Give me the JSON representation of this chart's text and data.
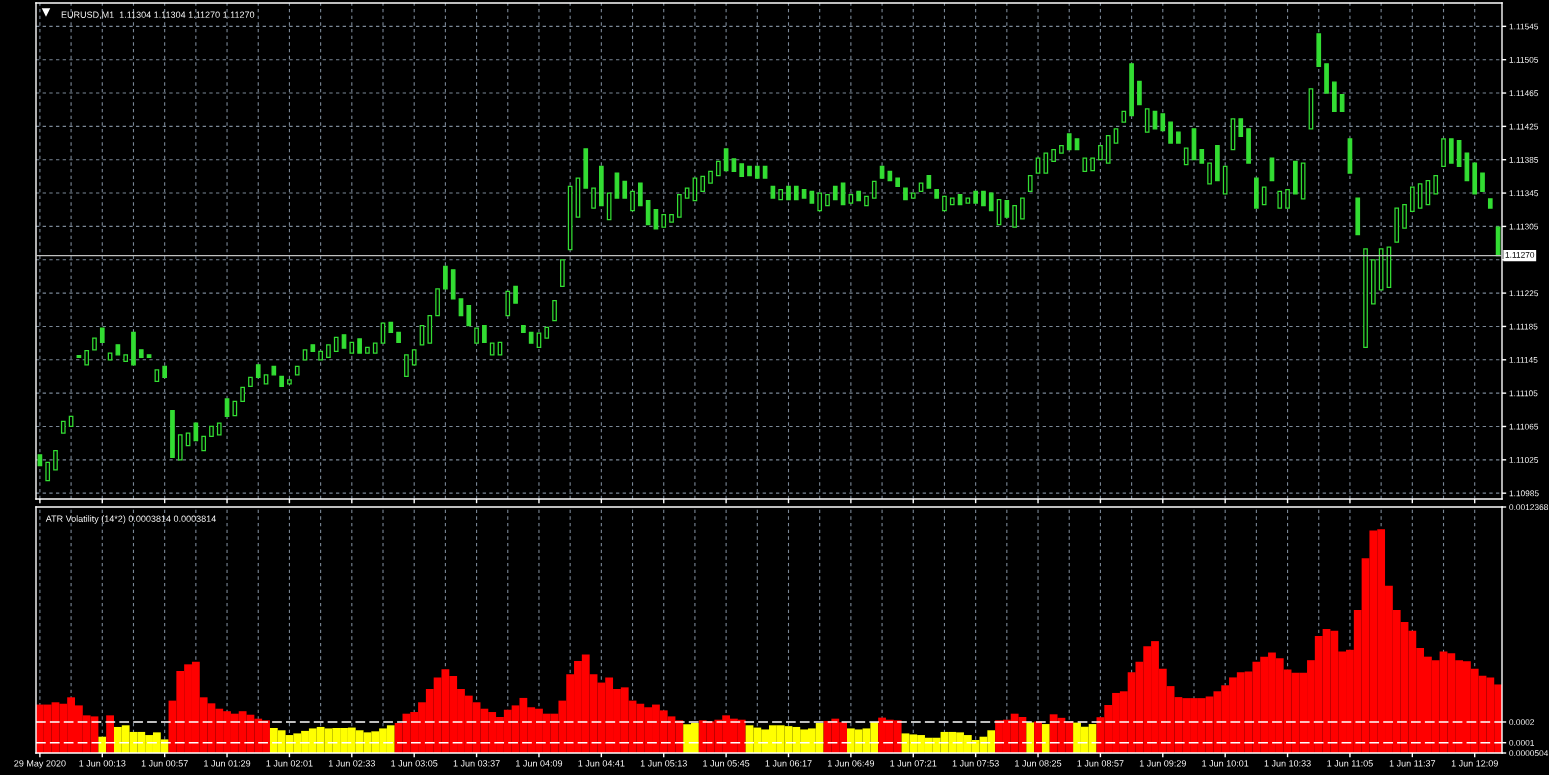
{
  "chart_data": [
    {
      "type": "candlestick",
      "title": "EURUSD,M1  1.11304 1.11304 1.11270 1.11270",
      "color": "#33dd33",
      "categories": [
        null,
        null,
        null,
        null,
        null,
        null,
        null,
        null,
        null,
        null,
        null,
        null,
        null,
        null,
        null,
        null,
        null,
        null,
        null,
        null,
        null,
        null,
        null,
        null,
        null,
        null,
        null,
        null,
        null,
        null,
        null,
        null,
        null,
        null,
        null,
        null,
        null,
        null,
        null,
        null,
        null,
        null,
        null,
        null,
        null,
        null,
        null,
        null,
        null,
        null,
        null,
        null,
        null,
        null,
        null,
        null,
        null,
        null,
        null,
        null,
        null,
        null,
        null,
        null,
        null,
        null,
        null,
        null,
        null,
        null,
        null,
        null,
        null,
        null,
        null,
        null,
        null,
        null,
        null,
        null,
        null,
        null,
        null,
        null,
        null,
        null,
        null,
        null,
        null,
        null,
        null,
        null,
        null,
        null,
        null,
        null,
        null,
        null,
        null,
        null,
        null,
        null,
        null,
        null,
        null,
        null,
        null,
        null,
        null,
        null,
        null,
        null,
        null,
        null,
        null,
        null,
        null,
        null,
        null,
        null,
        null,
        null,
        null,
        null,
        null,
        null,
        null,
        null,
        null,
        null,
        null,
        null,
        null,
        null,
        null,
        null,
        null,
        null,
        null,
        null,
        null,
        null,
        null,
        null,
        null,
        null,
        null,
        null,
        null,
        null,
        null,
        null,
        null,
        null,
        null,
        null,
        null,
        null,
        null,
        null,
        null,
        null,
        null,
        null,
        null,
        null,
        null,
        null,
        null,
        null,
        null,
        null,
        null,
        null,
        null,
        null,
        null,
        null,
        null,
        null,
        null,
        null,
        null,
        null,
        null,
        null,
        null,
        null
      ],
      "ohlc": [
        [
          1.11031,
          1.11031,
          1.11018,
          1.11018
        ],
        [
          1.11,
          1.11022,
          1.11,
          1.11022
        ],
        [
          1.11013,
          1.11036,
          1.11013,
          1.11036
        ],
        [
          1.11057,
          1.11071,
          1.11057,
          1.11071
        ],
        [
          1.11065,
          1.11077,
          1.11065,
          1.11077
        ],
        [
          1.1115,
          1.1115,
          1.11148,
          1.11148
        ],
        [
          1.11139,
          1.11156,
          1.11139,
          1.11156
        ],
        [
          1.11157,
          1.11171,
          1.11157,
          1.11171
        ],
        [
          1.11183,
          1.11183,
          1.11166,
          1.11166
        ],
        [
          1.11145,
          1.11153,
          1.11145,
          1.11153
        ],
        [
          1.11163,
          1.11163,
          1.11151,
          1.11151
        ],
        [
          1.11143,
          1.11151,
          1.11143,
          1.11151
        ],
        [
          1.11178,
          1.11178,
          1.11139,
          1.11139
        ],
        [
          1.11157,
          1.11157,
          1.11148,
          1.11148
        ],
        [
          1.11151,
          1.11151,
          1.11148,
          1.11148
        ],
        [
          1.11119,
          1.11133,
          1.11119,
          1.11133
        ],
        [
          1.11137,
          1.11137,
          1.11124,
          1.11124
        ],
        [
          1.11084,
          1.11084,
          1.11028,
          1.11028
        ],
        [
          1.11025,
          1.11055,
          1.11025,
          1.11055
        ],
        [
          1.11042,
          1.11057,
          1.11042,
          1.11057
        ],
        [
          1.11069,
          1.11069,
          1.11048,
          1.11048
        ],
        [
          1.11036,
          1.11053,
          1.11036,
          1.11053
        ],
        [
          1.11053,
          1.11065,
          1.11053,
          1.11065
        ],
        [
          1.11055,
          1.11069,
          1.11055,
          1.11069
        ],
        [
          1.11098,
          1.11098,
          1.11077,
          1.11077
        ],
        [
          1.11078,
          1.11095,
          1.11078,
          1.11095
        ],
        [
          1.11095,
          1.11112,
          1.11095,
          1.11112
        ],
        [
          1.11113,
          1.11124,
          1.11113,
          1.11124
        ],
        [
          1.11139,
          1.11139,
          1.11124,
          1.11124
        ],
        [
          1.11116,
          1.11127,
          1.11116,
          1.11127
        ],
        [
          1.11137,
          1.11137,
          1.11127,
          1.11127
        ],
        [
          1.11125,
          1.11125,
          1.11113,
          1.11113
        ],
        [
          1.11116,
          1.11121,
          1.11116,
          1.11121
        ],
        [
          1.11127,
          1.11137,
          1.11127,
          1.11137
        ],
        [
          1.11145,
          1.11157,
          1.11145,
          1.11157
        ],
        [
          1.11163,
          1.11163,
          1.11155,
          1.11155
        ],
        [
          1.11145,
          1.11155,
          1.11145,
          1.11155
        ],
        [
          1.11148,
          1.11163,
          1.11148,
          1.11163
        ],
        [
          1.11155,
          1.11172,
          1.11155,
          1.11172
        ],
        [
          1.11175,
          1.11175,
          1.11159,
          1.11159
        ],
        [
          1.11153,
          1.11166,
          1.11153,
          1.11166
        ],
        [
          1.1117,
          1.1117,
          1.11153,
          1.11153
        ],
        [
          1.11153,
          1.1116,
          1.11153,
          1.1116
        ],
        [
          1.11153,
          1.11165,
          1.11153,
          1.11165
        ],
        [
          1.11165,
          1.11189,
          1.11165,
          1.11189
        ],
        [
          1.1119,
          1.1119,
          1.11178,
          1.11178
        ],
        [
          1.11178,
          1.11178,
          1.11166,
          1.11166
        ],
        [
          1.11125,
          1.11151,
          1.11125,
          1.11151
        ],
        [
          1.11139,
          1.11157,
          1.11139,
          1.11157
        ],
        [
          1.11163,
          1.11186,
          1.11163,
          1.11186
        ],
        [
          1.11165,
          1.11198,
          1.11165,
          1.11198
        ],
        [
          1.11198,
          1.1123,
          1.11198,
          1.1123
        ],
        [
          1.11257,
          1.11257,
          1.1123,
          1.1123
        ],
        [
          1.11253,
          1.11253,
          1.11218,
          1.11218
        ],
        [
          1.11218,
          1.11218,
          1.11198,
          1.11198
        ],
        [
          1.1121,
          1.1121,
          1.11186,
          1.11186
        ],
        [
          1.11165,
          1.11183,
          1.11165,
          1.11183
        ],
        [
          1.11186,
          1.11186,
          1.11166,
          1.11166
        ],
        [
          1.11151,
          1.11165,
          1.11151,
          1.11165
        ],
        [
          1.11151,
          1.11166,
          1.11151,
          1.11166
        ],
        [
          1.11198,
          1.11227,
          1.11198,
          1.11227
        ],
        [
          1.11233,
          1.11233,
          1.11213,
          1.11213
        ],
        [
          1.11186,
          1.11186,
          1.11178,
          1.11178
        ],
        [
          1.11178,
          1.11178,
          1.11165,
          1.11165
        ],
        [
          1.1116,
          1.11177,
          1.1116,
          1.11177
        ],
        [
          1.11171,
          1.11184,
          1.11171,
          1.11184
        ],
        [
          1.11192,
          1.11216,
          1.11192,
          1.11216
        ],
        [
          1.11233,
          1.11265,
          1.11233,
          1.11265
        ],
        [
          1.11277,
          1.11353,
          1.11277,
          1.11353
        ],
        [
          1.11316,
          1.11363,
          1.11316,
          1.11363
        ],
        [
          1.11398,
          1.11398,
          1.11351,
          1.11351
        ],
        [
          1.11327,
          1.11351,
          1.11327,
          1.11351
        ],
        [
          1.11377,
          1.11377,
          1.1133,
          1.1133
        ],
        [
          1.11313,
          1.11345,
          1.11313,
          1.11345
        ],
        [
          1.11369,
          1.11369,
          1.11339,
          1.11339
        ],
        [
          1.11359,
          1.11359,
          1.11339,
          1.11339
        ],
        [
          1.11324,
          1.11347,
          1.11324,
          1.11347
        ],
        [
          1.11357,
          1.11357,
          1.1133,
          1.1133
        ],
        [
          1.11336,
          1.11336,
          1.11307,
          1.11307
        ],
        [
          1.11325,
          1.11325,
          1.11302,
          1.11302
        ],
        [
          1.11304,
          1.11319,
          1.11304,
          1.11319
        ],
        [
          1.1131,
          1.11319,
          1.1131,
          1.11319
        ],
        [
          1.11316,
          1.11343,
          1.11316,
          1.11343
        ],
        [
          1.11339,
          1.11351,
          1.11339,
          1.11351
        ],
        [
          1.11336,
          1.11363,
          1.11336,
          1.11363
        ],
        [
          1.11347,
          1.11365,
          1.11347,
          1.11365
        ],
        [
          1.11357,
          1.11371,
          1.11357,
          1.11371
        ],
        [
          1.11366,
          1.11383,
          1.11366,
          1.11383
        ],
        [
          1.11398,
          1.11398,
          1.11372,
          1.11372
        ],
        [
          1.11386,
          1.11386,
          1.11371,
          1.11371
        ],
        [
          1.1138,
          1.1138,
          1.11365,
          1.11365
        ],
        [
          1.11377,
          1.11377,
          1.11366,
          1.11366
        ],
        [
          1.11377,
          1.11377,
          1.11363,
          1.11363
        ],
        [
          1.11377,
          1.11377,
          1.11363,
          1.11363
        ],
        [
          1.11353,
          1.11353,
          1.11339,
          1.11339
        ],
        [
          1.11337,
          1.11349,
          1.11337,
          1.11349
        ],
        [
          1.11353,
          1.11353,
          1.11337,
          1.11337
        ],
        [
          1.11353,
          1.11353,
          1.11337,
          1.11337
        ],
        [
          1.11349,
          1.11349,
          1.11339,
          1.11339
        ],
        [
          1.11347,
          1.11347,
          1.11333,
          1.11333
        ],
        [
          1.11324,
          1.11345,
          1.11324,
          1.11345
        ],
        [
          1.1133,
          1.11343,
          1.1133,
          1.11343
        ],
        [
          1.11353,
          1.11353,
          1.11337,
          1.11337
        ],
        [
          1.11357,
          1.11357,
          1.11331,
          1.11331
        ],
        [
          1.11333,
          1.11343,
          1.11333,
          1.11343
        ],
        [
          1.11347,
          1.11347,
          1.11336,
          1.11336
        ],
        [
          1.1133,
          1.11341,
          1.1133,
          1.11341
        ],
        [
          1.11339,
          1.11359,
          1.11339,
          1.11359
        ],
        [
          1.11377,
          1.11377,
          1.11363,
          1.11363
        ],
        [
          1.11371,
          1.11371,
          1.1136,
          1.1136
        ],
        [
          1.11363,
          1.11363,
          1.11353,
          1.11353
        ],
        [
          1.11351,
          1.11351,
          1.11337,
          1.11337
        ],
        [
          1.11339,
          1.11345,
          1.11339,
          1.11345
        ],
        [
          1.11347,
          1.11357,
          1.11347,
          1.11357
        ],
        [
          1.11366,
          1.11366,
          1.11351,
          1.11351
        ],
        [
          1.11349,
          1.11349,
          1.11339,
          1.11339
        ],
        [
          1.11324,
          1.11341,
          1.11324,
          1.11341
        ],
        [
          1.11331,
          1.11339,
          1.11331,
          1.11339
        ],
        [
          1.11343,
          1.11343,
          1.11331,
          1.11331
        ],
        [
          1.11333,
          1.11339,
          1.11333,
          1.11339
        ],
        [
          1.11347,
          1.11347,
          1.11333,
          1.11333
        ],
        [
          1.11347,
          1.11347,
          1.1133,
          1.1133
        ],
        [
          1.11345,
          1.11345,
          1.11324,
          1.11324
        ],
        [
          1.11307,
          1.11337,
          1.11307,
          1.11337
        ],
        [
          1.11336,
          1.11336,
          1.11316,
          1.11316
        ],
        [
          1.11304,
          1.1133,
          1.11304,
          1.1133
        ],
        [
          1.11314,
          1.11339,
          1.11314,
          1.11339
        ],
        [
          1.11347,
          1.11366,
          1.11347,
          1.11366
        ],
        [
          1.11369,
          1.11387,
          1.11369,
          1.11387
        ],
        [
          1.11369,
          1.11393,
          1.11369,
          1.11393
        ],
        [
          1.11383,
          1.11397,
          1.11383,
          1.11397
        ],
        [
          1.11393,
          1.11402,
          1.11393,
          1.11402
        ],
        [
          1.11416,
          1.11416,
          1.11397,
          1.11397
        ],
        [
          1.1141,
          1.1141,
          1.11397,
          1.11397
        ],
        [
          1.11371,
          1.11387,
          1.11371,
          1.11387
        ],
        [
          1.11372,
          1.11387,
          1.11372,
          1.11387
        ],
        [
          1.11385,
          1.11402,
          1.11385,
          1.11402
        ],
        [
          1.11381,
          1.11414,
          1.11381,
          1.11414
        ],
        [
          1.11405,
          1.11422,
          1.11405,
          1.11422
        ],
        [
          1.1143,
          1.11443,
          1.1143,
          1.11443
        ],
        [
          1.115,
          1.115,
          1.11438,
          1.11438
        ],
        [
          1.11479,
          1.11479,
          1.11451,
          1.11451
        ],
        [
          1.11418,
          1.11446,
          1.11418,
          1.11446
        ],
        [
          1.11443,
          1.11443,
          1.11422,
          1.11422
        ],
        [
          1.1144,
          1.1144,
          1.1142,
          1.1142
        ],
        [
          1.1143,
          1.1143,
          1.11405,
          1.11405
        ],
        [
          1.11418,
          1.11418,
          1.11405,
          1.11405
        ],
        [
          1.11379,
          1.11399,
          1.11379,
          1.11399
        ],
        [
          1.11422,
          1.11422,
          1.11385,
          1.11385
        ],
        [
          1.11397,
          1.11397,
          1.11381,
          1.11381
        ],
        [
          1.11356,
          1.11381,
          1.11356,
          1.11381
        ],
        [
          1.11402,
          1.11402,
          1.1136,
          1.1136
        ],
        [
          1.11344,
          1.11377,
          1.11344,
          1.11377
        ],
        [
          1.11397,
          1.11434,
          1.11397,
          1.11434
        ],
        [
          1.11434,
          1.11434,
          1.11413,
          1.11413
        ],
        [
          1.11422,
          1.11422,
          1.11381,
          1.11381
        ],
        [
          1.11363,
          1.11363,
          1.11327,
          1.11327
        ],
        [
          1.11331,
          1.11352,
          1.11331,
          1.11352
        ],
        [
          1.11387,
          1.11387,
          1.1136,
          1.1136
        ],
        [
          1.11327,
          1.11347,
          1.11327,
          1.11347
        ],
        [
          1.11327,
          1.11349,
          1.11327,
          1.11349
        ],
        [
          1.11383,
          1.11383,
          1.11344,
          1.11344
        ],
        [
          1.11338,
          1.11381,
          1.11338,
          1.11381
        ],
        [
          1.11422,
          1.1147,
          1.11422,
          1.1147
        ],
        [
          1.11536,
          1.11536,
          1.11497,
          1.11497
        ],
        [
          1.115,
          1.115,
          1.11465,
          1.11465
        ],
        [
          1.11478,
          1.11478,
          1.11443,
          1.11443
        ],
        [
          1.11463,
          1.11463,
          1.11443,
          1.11443
        ],
        [
          1.1141,
          1.1141,
          1.11369,
          1.11369
        ],
        [
          1.11339,
          1.11339,
          1.11295,
          1.11295
        ],
        [
          1.1116,
          1.11278,
          1.1116,
          1.11278
        ],
        [
          1.11212,
          1.11265,
          1.11212,
          1.11265
        ],
        [
          1.11229,
          1.11278,
          1.11229,
          1.11278
        ],
        [
          1.11232,
          1.1128,
          1.11232,
          1.1128
        ],
        [
          1.11286,
          1.11327,
          1.11286,
          1.11327
        ],
        [
          1.11303,
          1.11331,
          1.11303,
          1.11331
        ],
        [
          1.11323,
          1.11352,
          1.11323,
          1.11352
        ],
        [
          1.11327,
          1.11356,
          1.11327,
          1.11356
        ],
        [
          1.11331,
          1.1136,
          1.11331,
          1.1136
        ],
        [
          1.11344,
          1.11366,
          1.11344,
          1.11366
        ],
        [
          1.11377,
          1.1141,
          1.11377,
          1.1141
        ],
        [
          1.1141,
          1.1141,
          1.11381,
          1.11381
        ],
        [
          1.11408,
          1.11408,
          1.11377,
          1.11377
        ],
        [
          1.11393,
          1.11393,
          1.1136,
          1.1136
        ],
        [
          1.11381,
          1.11381,
          1.11344,
          1.11344
        ],
        [
          1.11369,
          1.11369,
          1.11347,
          1.11347
        ],
        [
          1.11338,
          1.11338,
          1.11327,
          1.11327
        ],
        [
          1.11304,
          1.11304,
          1.1127,
          1.1127
        ]
      ],
      "ylim": [
        1.10978,
        1.11573
      ],
      "yticks": [
        1.10985,
        1.11025,
        1.11065,
        1.11105,
        1.11145,
        1.11185,
        1.11225,
        {
          "value": 1.11265,
          "label": null
        },
        1.11305,
        1.11345,
        1.11385,
        1.11425,
        1.11465,
        1.11505,
        1.11545
      ],
      "grid": true,
      "tick_labels": "y",
      "ref_lines": [
        {
          "axis": "y",
          "value": 1.1127,
          "label": "1.11270",
          "color": "#c0c0c0"
        }
      ]
    },
    {
      "type": "bar",
      "title": "ATR Volatility (14*2) 0.0003814 0.0003814",
      "categories": [
        "29 May 2020",
        null,
        null,
        null,
        null,
        null,
        null,
        null,
        "1 Jun 00:13",
        null,
        null,
        null,
        null,
        null,
        null,
        null,
        "1 Jun 00:57",
        null,
        null,
        null,
        null,
        null,
        null,
        null,
        "1 Jun 01:29",
        null,
        null,
        null,
        null,
        null,
        null,
        null,
        "1 Jun 02:01",
        null,
        null,
        null,
        null,
        null,
        null,
        null,
        "1 Jun 02:33",
        null,
        null,
        null,
        null,
        null,
        null,
        null,
        "1 Jun 03:05",
        null,
        null,
        null,
        null,
        null,
        null,
        null,
        "1 Jun 03:37",
        null,
        null,
        null,
        null,
        null,
        null,
        null,
        "1 Jun 04:09",
        null,
        null,
        null,
        null,
        null,
        null,
        null,
        "1 Jun 04:41",
        null,
        null,
        null,
        null,
        null,
        null,
        null,
        "1 Jun 05:13",
        null,
        null,
        null,
        null,
        null,
        null,
        null,
        "1 Jun 05:45",
        null,
        null,
        null,
        null,
        null,
        null,
        null,
        "1 Jun 06:17",
        null,
        null,
        null,
        null,
        null,
        null,
        null,
        "1 Jun 06:49",
        null,
        null,
        null,
        null,
        null,
        null,
        null,
        "1 Jun 07:21",
        null,
        null,
        null,
        null,
        null,
        null,
        null,
        "1 Jun 07:53",
        null,
        null,
        null,
        null,
        null,
        null,
        null,
        "1 Jun 08:25",
        null,
        null,
        null,
        null,
        null,
        null,
        null,
        "1 Jun 08:57",
        null,
        null,
        null,
        null,
        null,
        null,
        null,
        "1 Jun 09:29",
        null,
        null,
        null,
        null,
        null,
        null,
        null,
        "1 Jun 10:01",
        null,
        null,
        null,
        null,
        null,
        null,
        null,
        "1 Jun 10:33",
        null,
        null,
        null,
        null,
        null,
        null,
        null,
        "1 Jun 11:05",
        null,
        null,
        null,
        null,
        null,
        null,
        null,
        "1 Jun 11:37",
        null,
        null,
        null,
        null,
        null,
        null,
        null,
        "1 Jun 12:09",
        null,
        null,
        null
      ],
      "values": [
        0.000284,
        0.000284,
        0.000295,
        0.000288,
        0.000319,
        0.00028,
        0.000232,
        0.000227,
        0.000129,
        0.000232,
        0.000176,
        0.000184,
        0.000152,
        0.000152,
        0.000137,
        0.00015,
        0.000116,
        0.000303,
        0.000446,
        0.000478,
        0.00049,
        0.000319,
        0.00029,
        0.000264,
        0.000252,
        0.00024,
        0.000252,
        0.000235,
        0.000216,
        0.000208,
        0.000171,
        0.00016,
        0.000137,
        0.000145,
        0.000157,
        0.000169,
        0.000176,
        0.000169,
        0.000171,
        0.000171,
        0.000173,
        0.00016,
        0.00015,
        0.000155,
        0.000169,
        0.000184,
        0.000195,
        0.00024,
        0.000248,
        0.000295,
        0.000359,
        0.000414,
        0.000454,
        0.000422,
        0.000359,
        0.000327,
        0.000295,
        0.000264,
        0.000248,
        0.000224,
        0.000259,
        0.00028,
        0.000316,
        0.000271,
        0.000264,
        0.00024,
        0.00024,
        0.000303,
        0.00043,
        0.000494,
        0.000526,
        0.00043,
        0.00039,
        0.000414,
        0.000359,
        0.000367,
        0.000303,
        0.000288,
        0.000271,
        0.000284,
        0.000256,
        0.000227,
        0.000208,
        0.000189,
        0.000195,
        0.000208,
        0.000203,
        0.000211,
        0.000232,
        0.000216,
        0.000211,
        0.000184,
        0.000173,
        0.000164,
        0.000184,
        0.000184,
        0.00018,
        0.000176,
        0.000164,
        0.000169,
        0.000195,
        0.000205,
        0.000216,
        0.000199,
        0.000169,
        0.000164,
        0.000169,
        0.000199,
        0.000221,
        0.000211,
        0.000208,
        0.000145,
        0.00014,
        0.000137,
        0.000124,
        0.000124,
        0.000152,
        0.000152,
        0.00015,
        0.000137,
        0.000113,
        0.000129,
        0.00016,
        0.000208,
        0.000211,
        0.00024,
        0.000224,
        0.000198,
        0.000202,
        0.00019,
        0.000237,
        0.00022,
        0.000203,
        0.000197,
        0.000177,
        0.00019,
        0.000223,
        0.000282,
        0.00034,
        0.000348,
        0.00044,
        0.00049,
        0.000565,
        0.00059,
        0.000457,
        0.000373,
        0.00032,
        0.000315,
        0.000315,
        0.000315,
        0.000323,
        0.000348,
        0.000377,
        0.000415,
        0.00044,
        0.000443,
        0.00049,
        0.000515,
        0.000535,
        0.000507,
        0.000453,
        0.000437,
        0.000437,
        0.000498,
        0.000615,
        0.000648,
        0.00064,
        0.00054,
        0.000548,
        0.00074,
        0.00099,
        0.001123,
        0.00113,
        0.000857,
        0.00074,
        0.000682,
        0.00064,
        0.000557,
        0.000515,
        0.000498,
        0.00054,
        0.000532,
        0.000498,
        0.000493,
        0.000457,
        0.000423,
        0.000415,
        0.000381
      ],
      "colors": [
        "#ff0000",
        "#ff0000",
        "#ff0000",
        "#ff0000",
        "#ff0000",
        "#ff0000",
        "#ff0000",
        "#ff0000",
        "#ffff00",
        "#ff0000",
        "#ffff00",
        "#ffff00",
        "#ffff00",
        "#ffff00",
        "#ffff00",
        "#ffff00",
        "#ffff00",
        "#ff0000",
        "#ff0000",
        "#ff0000",
        "#ff0000",
        "#ff0000",
        "#ff0000",
        "#ff0000",
        "#ff0000",
        "#ff0000",
        "#ff0000",
        "#ff0000",
        "#ff0000",
        "#ff0000",
        "#ffff00",
        "#ffff00",
        "#ffff00",
        "#ffff00",
        "#ffff00",
        "#ffff00",
        "#ffff00",
        "#ffff00",
        "#ffff00",
        "#ffff00",
        "#ffff00",
        "#ffff00",
        "#ffff00",
        "#ffff00",
        "#ffff00",
        "#ffff00",
        "#ff0000",
        "#ff0000",
        "#ff0000",
        "#ff0000",
        "#ff0000",
        "#ff0000",
        "#ff0000",
        "#ff0000",
        "#ff0000",
        "#ff0000",
        "#ff0000",
        "#ff0000",
        "#ff0000",
        "#ff0000",
        "#ff0000",
        "#ff0000",
        "#ff0000",
        "#ff0000",
        "#ff0000",
        "#ff0000",
        "#ff0000",
        "#ff0000",
        "#ff0000",
        "#ff0000",
        "#ff0000",
        "#ff0000",
        "#ff0000",
        "#ff0000",
        "#ff0000",
        "#ff0000",
        "#ff0000",
        "#ff0000",
        "#ff0000",
        "#ff0000",
        "#ff0000",
        "#ff0000",
        "#ff0000",
        "#ffff00",
        "#ffff00",
        "#ff0000",
        "#ff0000",
        "#ff0000",
        "#ff0000",
        "#ff0000",
        "#ff0000",
        "#ffff00",
        "#ffff00",
        "#ffff00",
        "#ffff00",
        "#ffff00",
        "#ffff00",
        "#ffff00",
        "#ffff00",
        "#ffff00",
        "#ffff00",
        "#ff0000",
        "#ff0000",
        "#ff0000",
        "#ffff00",
        "#ffff00",
        "#ffff00",
        "#ffff00",
        "#ff0000",
        "#ff0000",
        "#ff0000",
        "#ffff00",
        "#ffff00",
        "#ffff00",
        "#ffff00",
        "#ffff00",
        "#ffff00",
        "#ffff00",
        "#ffff00",
        "#ffff00",
        "#ffff00",
        "#ffff00",
        "#ffff00",
        "#ff0000",
        "#ff0000",
        "#ff0000",
        "#ff0000",
        "#ffff00",
        "#ff0000",
        "#ffff00",
        "#ff0000",
        "#ff0000",
        "#ff0000",
        "#ffff00",
        "#ffff00",
        "#ffff00",
        "#ff0000",
        "#ff0000",
        "#ff0000",
        "#ff0000",
        "#ff0000",
        "#ff0000",
        "#ff0000",
        "#ff0000",
        "#ff0000",
        "#ff0000",
        "#ff0000",
        "#ff0000",
        "#ff0000",
        "#ff0000",
        "#ff0000",
        "#ff0000",
        "#ff0000",
        "#ff0000",
        "#ff0000",
        "#ff0000",
        "#ff0000",
        "#ff0000",
        "#ff0000",
        "#ff0000",
        "#ff0000",
        "#ff0000",
        "#ff0000",
        "#ff0000",
        "#ff0000",
        "#ff0000",
        "#ff0000",
        "#ff0000",
        "#ff0000",
        "#ff0000",
        "#ff0000",
        "#ff0000",
        "#ff0000",
        "#ff0000",
        "#ff0000",
        "#ff0000",
        "#ff0000",
        "#ff0000",
        "#ff0000",
        "#ff0000",
        "#ff0000",
        "#ff0000",
        "#ff0000",
        "#ff0000",
        "#ff0000",
        "#ff0000",
        "#ff0000",
        "#ff0000"
      ],
      "ylim": [
        5.04e-05,
        0.0012368
      ],
      "yticks": [
        {
          "value": 5.04e-05,
          "label": "0.0000504"
        },
        0.0001,
        0.0002,
        0.0012368
      ],
      "grid": "x",
      "ref_lines": [
        {
          "axis": "y",
          "value": 0.0002,
          "color": "#ffffff",
          "line_style": "dashed"
        },
        {
          "axis": "y",
          "value": 0.0001,
          "color": "#ffffff",
          "line_style": "dashed"
        }
      ]
    }
  ]
}
